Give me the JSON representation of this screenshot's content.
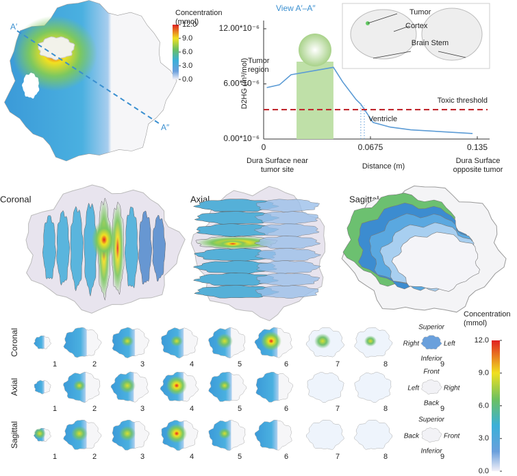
{
  "chart_data": {
    "type": "line",
    "title": "View A′–A″",
    "ylabel": "D2HG (m³/mol)",
    "xlabel": "Distance (m)",
    "x": [
      0.002,
      0.01,
      0.0173,
      0.0441,
      0.05,
      0.0584,
      0.0614,
      0.0649,
      0.0692,
      0.08,
      0.093,
      0.132
    ],
    "values": [
      5.6e-06,
      5.9e-06,
      7e-06,
      7.8e-06,
      6.2e-06,
      4.3e-06,
      3.8e-06,
      2.9e-06,
      1.8e-06,
      1.3e-06,
      1e-06,
      6e-07
    ],
    "color": "#5b9bd5",
    "xlim": [
      0,
      0.135
    ],
    "xticks": [
      0,
      0.0675,
      0.135
    ],
    "ylim": [
      0,
      1.2e-05
    ],
    "yticks": [
      {
        "value": 0,
        "label": "0.00*10⁻⁶"
      },
      {
        "value": 6e-06,
        "label": "6.00*10⁻⁶"
      },
      {
        "value": 1.2e-05,
        "label": "12.00*10⁻⁶"
      }
    ],
    "x_end_labels": [
      "Dura Surface near tumor site",
      "Dura Surface opposite tumor"
    ],
    "threshold": {
      "label": "Toxic threshold",
      "value": 3.2e-06,
      "color": "#c0272d"
    },
    "tumor_region": {
      "label": "Tumor region",
      "range": [
        0.0208,
        0.0441
      ]
    },
    "ventricle": {
      "label": "Ventricle",
      "x": [
        0.0614,
        0.0636
      ]
    }
  },
  "map": {
    "labels": [
      "A′",
      "A″"
    ],
    "colorbar": {
      "title": "Concentration (mmol)",
      "ticks": [
        {
          "value": 12,
          "label": "12.0"
        },
        {
          "value": 9,
          "label": "9.0"
        },
        {
          "value": 6,
          "label": "6.0"
        },
        {
          "value": 3,
          "label": "3.0"
        },
        {
          "value": 0,
          "label": "0.0"
        }
      ]
    }
  },
  "inset": {
    "labels": [
      "Tumor",
      "Cortex",
      "Brain Stem"
    ]
  },
  "views": [
    "Coronal",
    "Axial",
    "Sagittal"
  ],
  "slices": {
    "rows": [
      {
        "name": "Coronal",
        "orientation": [
          "Superior",
          "Right",
          "Left",
          "Inferior"
        ]
      },
      {
        "name": "Axial",
        "orientation": [
          "Front",
          "Left",
          "Right",
          "Back"
        ]
      },
      {
        "name": "Sagittal",
        "orientation": [
          "Superior",
          "Back",
          "Front",
          "Inferior"
        ]
      }
    ],
    "numbers": [
      1,
      2,
      3,
      4,
      5,
      6,
      7,
      8,
      9
    ],
    "colorbar": {
      "title": "Concentration (mmol)",
      "ticks": [
        {
          "value": 12,
          "label": "12.0"
        },
        {
          "value": 9,
          "label": "9.0"
        },
        {
          "value": 6,
          "label": "6.0"
        },
        {
          "value": 3,
          "label": "3.0"
        },
        {
          "value": 0,
          "label": "0.0"
        }
      ]
    }
  }
}
